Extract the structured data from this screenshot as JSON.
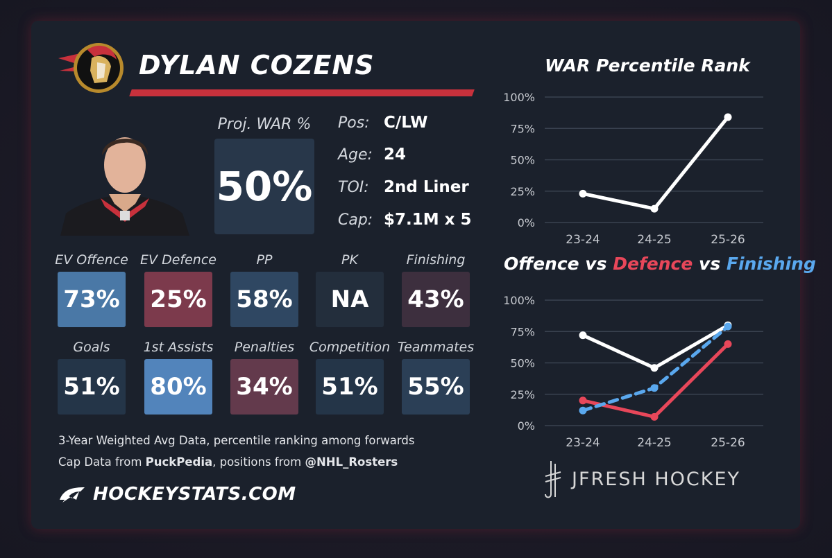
{
  "player": {
    "name": "DYLAN COZENS",
    "proj_war_label": "Proj. WAR %",
    "proj_war_value": "50%"
  },
  "info": [
    {
      "key": "Pos:",
      "value": "C/LW"
    },
    {
      "key": "Age:",
      "value": "24"
    },
    {
      "key": "TOI:",
      "value": "2nd Liner"
    },
    {
      "key": "Cap:",
      "value": "$7.1M x 5"
    }
  ],
  "tiles": [
    {
      "label": "EV Offence",
      "value": "73%",
      "color": "#4a78a6"
    },
    {
      "label": "EV Defence",
      "value": "25%",
      "color": "#7c3a4c"
    },
    {
      "label": "PP",
      "value": "58%",
      "color": "#2f4762"
    },
    {
      "label": "PK",
      "value": "NA",
      "color": "#232e3c"
    },
    {
      "label": "Finishing",
      "value": "43%",
      "color": "#3d2f3e"
    },
    {
      "label": "Goals",
      "value": "51%",
      "color": "#243548"
    },
    {
      "label": "1st Assists",
      "value": "80%",
      "color": "#5284bb"
    },
    {
      "label": "Penalties",
      "value": "34%",
      "color": "#633a4c"
    },
    {
      "label": "Competition",
      "value": "51%",
      "color": "#243548"
    },
    {
      "label": "Teammates",
      "value": "55%",
      "color": "#2b3f56"
    }
  ],
  "footer": {
    "line1": "3-Year Weighted Avg Data, percentile ranking among forwards",
    "line2_pre": "Cap Data from ",
    "line2_bold1": "PuckPedia",
    "line2_mid": ", positions from ",
    "line2_bold2": "@NHL_Rosters",
    "brand": "HOCKEYSTATS.COM",
    "credit": "JFRESH HOCKEY"
  },
  "chart_data": [
    {
      "type": "line",
      "title": "WAR Percentile Rank",
      "categories": [
        "23-24",
        "24-25",
        "25-26"
      ],
      "y_ticks": [
        "0%",
        "25%",
        "50%",
        "75%",
        "100%"
      ],
      "ylim": [
        0,
        100
      ],
      "series": [
        {
          "values": [
            23,
            11,
            84
          ],
          "color": "#ffffff"
        }
      ]
    },
    {
      "type": "line",
      "title_parts": [
        "Offence",
        " vs ",
        "Defence",
        " vs ",
        "Finishing"
      ],
      "title_colors": [
        "#ffffff",
        "#ffffff",
        "#e8475a",
        "#ffffff",
        "#5aa8ee"
      ],
      "categories": [
        "23-24",
        "24-25",
        "25-26"
      ],
      "y_ticks": [
        "0%",
        "25%",
        "50%",
        "75%",
        "100%"
      ],
      "ylim": [
        0,
        100
      ],
      "series": [
        {
          "name": "Offence",
          "values": [
            72,
            46,
            80
          ],
          "color": "#ffffff",
          "dashed": false
        },
        {
          "name": "Defence",
          "values": [
            20,
            7,
            65
          ],
          "color": "#e8475a",
          "dashed": false
        },
        {
          "name": "Finishing",
          "values": [
            12,
            30,
            79
          ],
          "color": "#5aa8ee",
          "dashed": true
        }
      ]
    }
  ]
}
